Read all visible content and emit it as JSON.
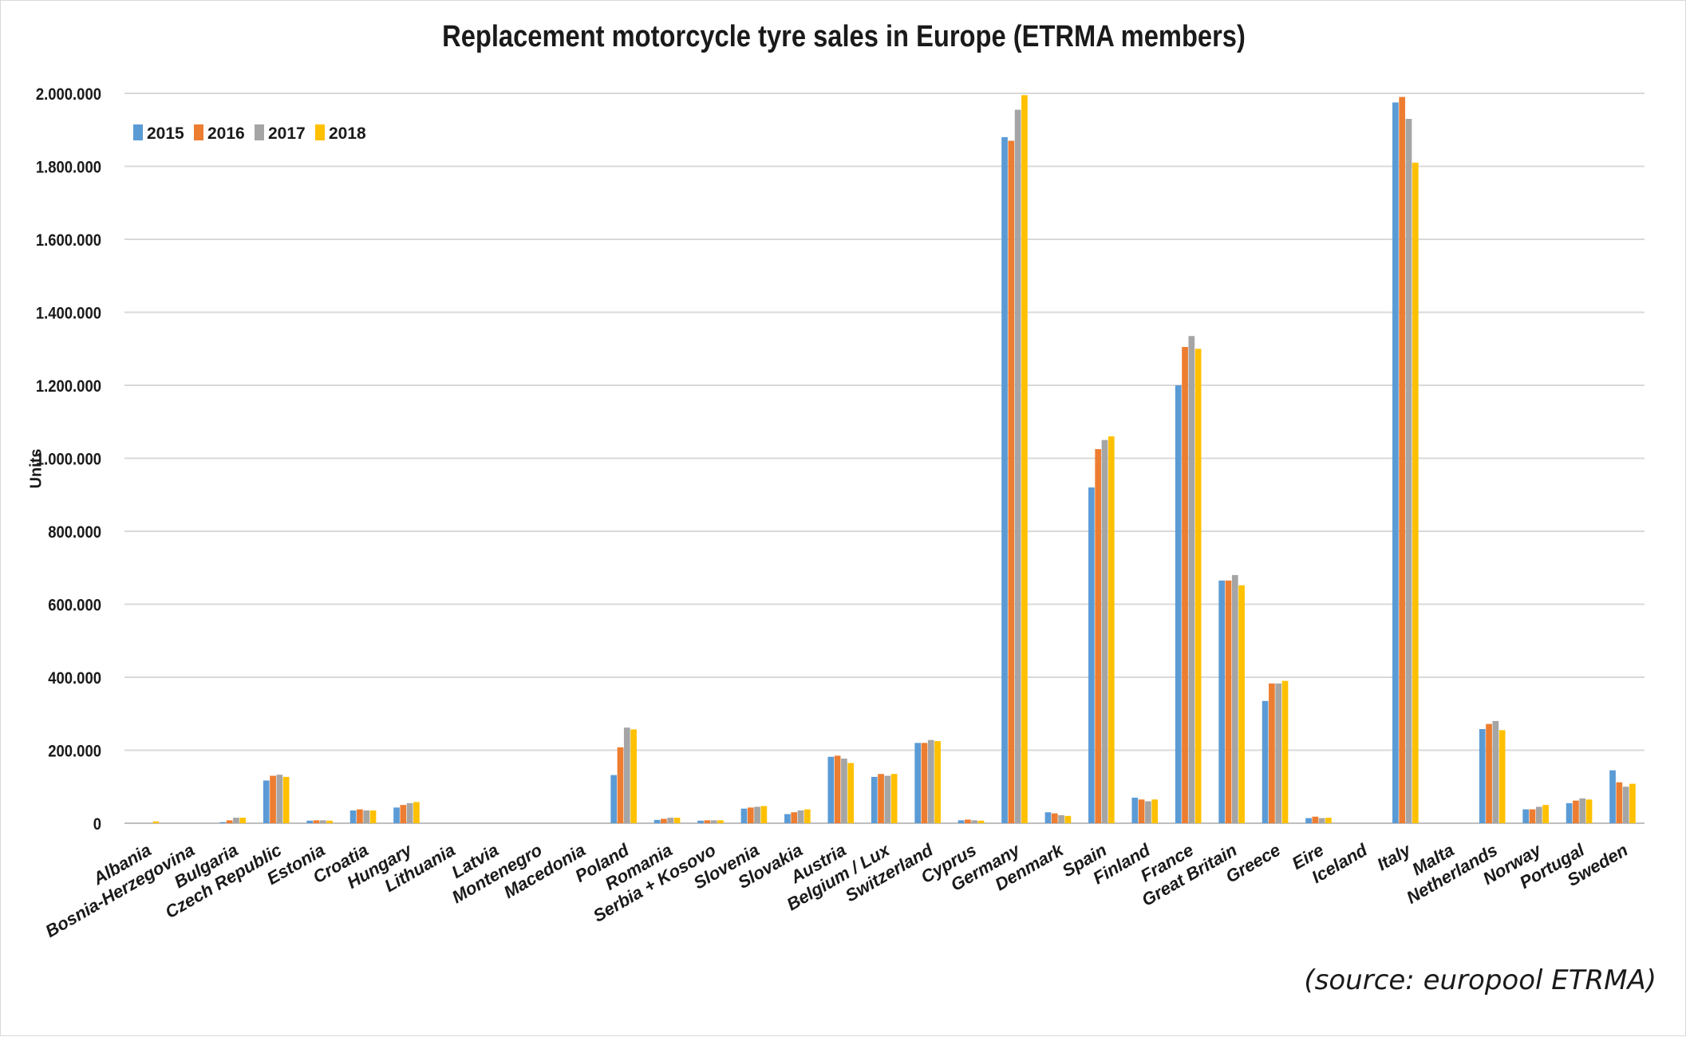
{
  "page": {
    "source_note": "(source: europool ETRMA)"
  },
  "chart_data": {
    "type": "bar",
    "title": "Replacement motorcycle tyre sales in Europe (ETRMA members)",
    "xlabel": "",
    "ylabel": "Units",
    "ylim": [
      0,
      2000000
    ],
    "yticks": [
      0,
      200000,
      400000,
      600000,
      800000,
      1000000,
      1200000,
      1400000,
      1600000,
      1800000,
      2000000
    ],
    "ytick_labels": [
      "0",
      "200.000",
      "400.000",
      "600.000",
      "800.000",
      "1.000.000",
      "1.200.000",
      "1.400.000",
      "1.600.000",
      "1.800.000",
      "2.000.000"
    ],
    "grid": true,
    "legend_position": "top-left",
    "categories": [
      "Albania",
      "Bosnia-Herzegovina",
      "Bulgaria",
      "Czech Republic",
      "Estonia",
      "Croatia",
      "Hungary",
      "Lithuania",
      "Latvia",
      "Montenegro",
      "Macedonia",
      "Poland",
      "Romania",
      "Serbia + Kosovo",
      "Slovenia",
      "Slovakia",
      "Austria",
      "Belgium / Lux",
      "Switzerland",
      "Cyprus",
      "Germany",
      "Denmark",
      "Spain",
      "Finland",
      "France",
      "Great Britain",
      "Greece",
      "Eire",
      "Iceland",
      "Italy",
      "Malta",
      "Netherlands",
      "Norway",
      "Portugal",
      "Sweden"
    ],
    "series": [
      {
        "name": "2015",
        "color": "#5b9bd5",
        "values": [
          0,
          0,
          3000,
          117000,
          7000,
          35000,
          43000,
          0,
          0,
          0,
          0,
          132000,
          9000,
          7000,
          40000,
          25000,
          182000,
          127000,
          220000,
          8000,
          1880000,
          30000,
          920000,
          70000,
          1200000,
          665000,
          335000,
          14000,
          0,
          1975000,
          0,
          258000,
          38000,
          55000,
          145000
        ]
      },
      {
        "name": "2016",
        "color": "#ed7d31",
        "values": [
          0,
          0,
          8000,
          130000,
          8000,
          38000,
          50000,
          0,
          0,
          0,
          0,
          208000,
          12000,
          8000,
          43000,
          30000,
          185000,
          135000,
          220000,
          10000,
          1870000,
          27000,
          1025000,
          65000,
          1305000,
          665000,
          383000,
          18000,
          0,
          1990000,
          0,
          272000,
          38000,
          62000,
          112000
        ]
      },
      {
        "name": "2017",
        "color": "#a5a5a5",
        "values": [
          0,
          0,
          15000,
          133000,
          8000,
          35000,
          55000,
          0,
          0,
          0,
          0,
          262000,
          15000,
          8000,
          45000,
          35000,
          177000,
          130000,
          228000,
          8000,
          1955000,
          22000,
          1050000,
          60000,
          1335000,
          680000,
          383000,
          14000,
          0,
          1930000,
          0,
          280000,
          45000,
          68000,
          100000
        ]
      },
      {
        "name": "2018",
        "color": "#ffc000",
        "values": [
          5000,
          0,
          15000,
          127000,
          7000,
          35000,
          58000,
          0,
          0,
          0,
          0,
          257000,
          15000,
          8000,
          47000,
          38000,
          165000,
          135000,
          225000,
          7000,
          1995000,
          20000,
          1060000,
          65000,
          1300000,
          652000,
          390000,
          15000,
          0,
          1810000,
          0,
          255000,
          50000,
          65000,
          108000
        ]
      }
    ]
  }
}
